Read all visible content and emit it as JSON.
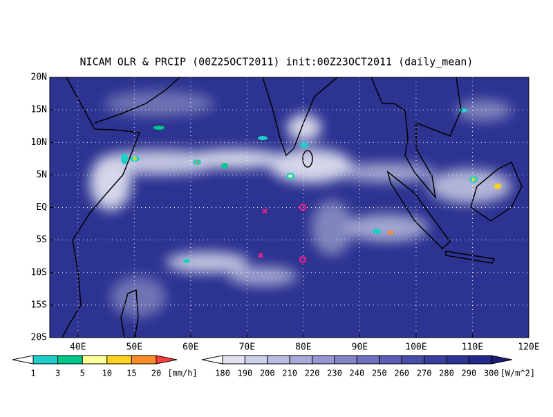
{
  "title": "NICAM OLR & PRCIP (00Z25OCT2011) init:00Z23OCT2011 (daily_mean)",
  "map": {
    "xlim": [
      35,
      120
    ],
    "ylim": [
      -20,
      20
    ],
    "lat_ticks": [
      {
        "value": 20,
        "label": "20N"
      },
      {
        "value": 15,
        "label": "15N"
      },
      {
        "value": 10,
        "label": "10N"
      },
      {
        "value": 5,
        "label": "5N"
      },
      {
        "value": 0,
        "label": "EQ"
      },
      {
        "value": -5,
        "label": "5S"
      },
      {
        "value": -10,
        "label": "10S"
      },
      {
        "value": -15,
        "label": "15S"
      },
      {
        "value": -20,
        "label": "20S"
      }
    ],
    "lon_ticks": [
      {
        "value": 40,
        "label": "40E"
      },
      {
        "value": 50,
        "label": "50E"
      },
      {
        "value": 60,
        "label": "60E"
      },
      {
        "value": 70,
        "label": "70E"
      },
      {
        "value": 80,
        "label": "80E"
      },
      {
        "value": 90,
        "label": "90E"
      },
      {
        "value": 100,
        "label": "100E"
      },
      {
        "value": 110,
        "label": "110E"
      },
      {
        "value": 120,
        "label": "120E"
      }
    ]
  },
  "precip_colorbar": {
    "ticks": [
      1,
      3,
      5,
      10,
      15,
      20
    ],
    "unit": "[mm/h]",
    "colors": [
      "#ffffff",
      "#1ecfc8",
      "#00c88a",
      "#ffff9a",
      "#ffd21e",
      "#ff8c28",
      "#ff3c3c"
    ]
  },
  "olr_colorbar": {
    "ticks": [
      180,
      190,
      200,
      210,
      220,
      230,
      240,
      250,
      260,
      270,
      280,
      290,
      300
    ],
    "unit": "[W/m^2]",
    "colors": [
      "#ffffff",
      "#e2e2f2",
      "#cfd0ec",
      "#bcbde4",
      "#a9aadc",
      "#9697d2",
      "#8284c8",
      "#6e71be",
      "#5b5eb4",
      "#494ca8",
      "#3a3e9e",
      "#2e3294",
      "#24288a",
      "#1a1e7a"
    ]
  }
}
